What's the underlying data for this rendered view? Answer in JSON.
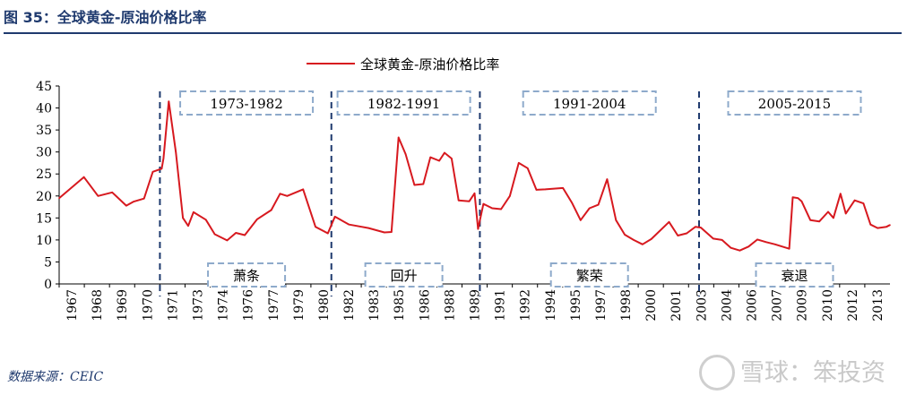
{
  "figure": {
    "title": "图 35：全球黄金-原油价格比率",
    "source": "数据来源：CEIC",
    "watermark_text": "雪球：笨投资"
  },
  "colors": {
    "series": "#d7191f",
    "accent": "#1f3a6e",
    "phase_box": "#8eaacb",
    "axis": "#000000"
  },
  "chart_data": {
    "type": "line",
    "title": "",
    "xlabel": "",
    "ylabel": "",
    "ylim": [
      0,
      45
    ],
    "yticks": [
      0,
      5,
      10,
      15,
      20,
      25,
      30,
      35,
      40,
      45
    ],
    "x_range": [
      1967.0,
      2014.0
    ],
    "x_tick_labels": [
      "1967",
      "1968",
      "1969",
      "1970",
      "1971",
      "1973",
      "1974",
      "1976",
      "1977",
      "1979",
      "1980",
      "1982",
      "1983",
      "1985",
      "1986",
      "1988",
      "1989",
      "1991",
      "1992",
      "1994",
      "1995",
      "1997",
      "1998",
      "2000",
      "2001",
      "2003",
      "2004",
      "2006",
      "2007",
      "2009",
      "2010",
      "2012",
      "2013"
    ],
    "legend": {
      "position": "top",
      "label": "全球黄金-原油价格比率"
    },
    "series": [
      {
        "name": "全球黄金-原油价格比率",
        "x": [
          1967.0,
          1968.4,
          1969.2,
          1970.0,
          1970.8,
          1971.2,
          1971.8,
          1972.3,
          1972.8,
          1972.9,
          1973.2,
          1973.6,
          1974.0,
          1974.3,
          1974.6,
          1975.3,
          1975.8,
          1976.5,
          1977.0,
          1977.5,
          1978.2,
          1979.0,
          1979.5,
          1979.9,
          1980.8,
          1981.5,
          1982.2,
          1982.6,
          1983.4,
          1984.5,
          1985.4,
          1985.8,
          1986.2,
          1986.6,
          1987.1,
          1987.6,
          1988.0,
          1988.5,
          1988.8,
          1989.2,
          1989.6,
          1990.2,
          1990.5,
          1990.7,
          1991.0,
          1991.5,
          1992.0,
          1992.5,
          1993.0,
          1993.5,
          1994.0,
          1994.5,
          1995.5,
          1996.0,
          1996.5,
          1997.0,
          1997.5,
          1998.0,
          1998.5,
          1999.0,
          1999.5,
          2000.0,
          2000.5,
          2001.5,
          2002.0,
          2002.5,
          2003.0,
          2003.3,
          2004.0,
          2004.5,
          2005.0,
          2005.5,
          2006.0,
          2006.5,
          2007.0,
          2007.5,
          2008.3,
          2008.5,
          2008.8,
          2009.0,
          2009.5,
          2010.0,
          2010.5,
          2010.8,
          2011.2,
          2011.5,
          2012.0,
          2012.5,
          2012.9,
          2013.3,
          2013.8,
          2014.0
        ],
        "values": [
          19.5,
          24.3,
          20.0,
          20.8,
          17.8,
          18.7,
          19.4,
          25.5,
          26.2,
          28.5,
          41.5,
          30.0,
          15.0,
          13.2,
          16.3,
          14.6,
          11.3,
          9.9,
          11.6,
          11.1,
          14.7,
          16.8,
          20.5,
          20.0,
          21.5,
          13.0,
          11.5,
          15.3,
          13.5,
          12.7,
          11.7,
          11.8,
          33.3,
          29.5,
          22.5,
          22.7,
          28.8,
          28.0,
          29.8,
          28.5,
          19.0,
          18.8,
          20.6,
          12.5,
          18.2,
          17.2,
          17.0,
          20.0,
          27.5,
          26.3,
          21.4,
          21.5,
          21.8,
          18.5,
          14.5,
          17.2,
          18.0,
          23.8,
          14.5,
          11.2,
          10.0,
          9.0,
          10.2,
          14.1,
          11.0,
          11.5,
          13.0,
          12.8,
          10.3,
          10.0,
          8.2,
          7.6,
          8.5,
          10.1,
          9.5,
          9.0,
          8.0,
          19.7,
          19.5,
          18.8,
          14.5,
          14.2,
          16.4,
          15.0,
          20.5,
          16.0,
          19.0,
          18.3,
          13.5,
          12.7,
          13.0,
          13.4
        ]
      }
    ],
    "phase_dividers": [
      1972.7,
      1982.4,
      1990.8,
      2003.2
    ],
    "phase_labels": [
      {
        "text": "1973-1982",
        "center_x": 1977.6,
        "row": "top"
      },
      {
        "text": "1982-1991",
        "center_x": 1986.5,
        "row": "top"
      },
      {
        "text": "1991-2004",
        "center_x": 1997.0,
        "row": "top"
      },
      {
        "text": "2005-2015",
        "center_x": 2008.6,
        "row": "top"
      },
      {
        "text": "萧条",
        "center_x": 1977.6,
        "row": "bottom"
      },
      {
        "text": "回升",
        "center_x": 1986.5,
        "row": "bottom"
      },
      {
        "text": "繁荣",
        "center_x": 1997.0,
        "row": "bottom"
      },
      {
        "text": "衰退",
        "center_x": 2008.6,
        "row": "bottom"
      }
    ]
  }
}
